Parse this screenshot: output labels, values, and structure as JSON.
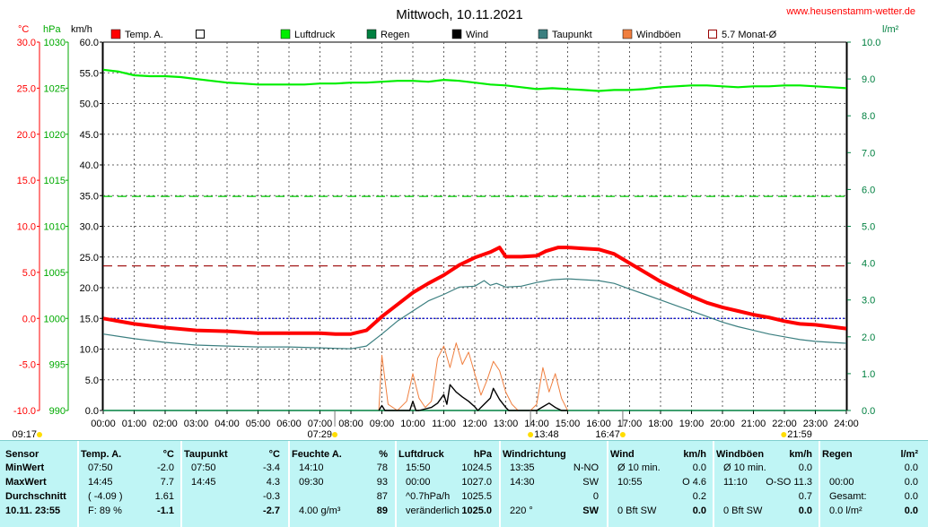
{
  "title": "Mittwoch, 10.11.2021",
  "site": "www.heusenstamm-wetter.de",
  "colors": {
    "temp": "#ff0000",
    "pressure": "#00ee00",
    "dew": "#3b7f80",
    "gust": "#f07f3f",
    "wind": "#000000",
    "rain": "#008040",
    "monthavg": "#990000",
    "axis_left": "#ff0000",
    "axis_hpa": "#00aa00",
    "axis_kmh": "#000000",
    "axis_rain": "#008040"
  },
  "axes": {
    "temp_unit": "°C",
    "hpa_unit": "hPa",
    "kmh_unit": "km/h",
    "rain_unit": "l/m²",
    "temp_ticks": [
      "30.0",
      "25.0",
      "20.0",
      "15.0",
      "10.0",
      "5.0",
      "0.0",
      "-5.0",
      "-10.0"
    ],
    "hpa_ticks": [
      "1030",
      "1025",
      "1020",
      "1015",
      "1010",
      "1005",
      "1000",
      "995",
      "990"
    ],
    "kmh_ticks": [
      "60.0",
      "55.0",
      "50.0",
      "45.0",
      "40.0",
      "35.0",
      "30.0",
      "25.0",
      "20.0",
      "15.0",
      "10.0",
      "5.0",
      "0.0"
    ],
    "rain_ticks": [
      "10.0",
      "9.0",
      "8.0",
      "7.0",
      "6.0",
      "5.0",
      "4.0",
      "3.0",
      "2.0",
      "1.0",
      "0.0"
    ],
    "x_ticks": [
      "00:00",
      "01:00",
      "02:00",
      "03:00",
      "04:00",
      "05:00",
      "06:00",
      "07:00",
      "08:00",
      "09:00",
      "10:00",
      "11:00",
      "12:00",
      "13:00",
      "14:00",
      "15:00",
      "16:00",
      "17:00",
      "18:00",
      "19:00",
      "20:00",
      "21:00",
      "22:00",
      "23:00",
      "24:00"
    ],
    "x_hours": [
      0,
      1,
      2,
      3,
      4,
      5,
      6,
      7,
      8,
      9,
      10,
      11,
      12,
      13,
      14,
      15,
      16,
      17,
      18,
      19,
      20,
      21,
      22,
      23,
      24
    ],
    "temp_range": [
      -10,
      30
    ],
    "hpa_range": [
      990,
      1030
    ],
    "kmh_range": [
      0,
      60
    ],
    "rain_range": [
      0,
      10
    ]
  },
  "legend": [
    {
      "label": "Temp. A.",
      "color": "#ff0000",
      "style": "fill"
    },
    {
      "label": "",
      "color": "#ffffff",
      "style": "box"
    },
    {
      "label": "Luftdruck",
      "color": "#00ee00",
      "style": "fill"
    },
    {
      "label": "Regen",
      "color": "#008040",
      "style": "fill"
    },
    {
      "label": "Wind",
      "color": "#000000",
      "style": "fill"
    },
    {
      "label": "Taupunkt",
      "color": "#3b7f80",
      "style": "fill"
    },
    {
      "label": "Windböen",
      "color": "#f07f3f",
      "style": "fill"
    },
    {
      "label": "5.7 Monat-Ø",
      "color": "#990000",
      "style": "box"
    }
  ],
  "sun_markers": [
    {
      "label": "09:17",
      "hour": 0
    },
    {
      "label": "07:29",
      "hour": 7.48
    },
    {
      "label": "13:48",
      "hour": 13.8
    },
    {
      "label": "16:47",
      "hour": 16.78
    },
    {
      "label": "21:59",
      "hour": 21.98
    }
  ],
  "chart_data": {
    "type": "line",
    "title": "Mittwoch, 10.11.2021",
    "x_unit": "hour",
    "series": [
      {
        "name": "Temp. A.",
        "axis": "temp",
        "color": "#ff0000",
        "x": [
          0,
          1,
          2,
          3,
          4,
          5,
          6,
          7,
          7.5,
          8,
          8.5,
          9,
          9.5,
          10,
          10.5,
          11,
          11.5,
          12,
          12.5,
          12.8,
          13,
          13.5,
          14,
          14.3,
          14.7,
          15,
          15.5,
          16,
          16.5,
          17,
          17.5,
          18,
          18.5,
          19,
          19.5,
          20,
          20.5,
          21,
          21.5,
          22,
          22.5,
          23,
          23.5,
          24
        ],
        "y": [
          0.0,
          -0.6,
          -1.0,
          -1.3,
          -1.4,
          -1.6,
          -1.6,
          -1.6,
          -1.7,
          -1.7,
          -1.3,
          0.2,
          1.5,
          2.8,
          3.8,
          4.7,
          5.8,
          6.6,
          7.2,
          7.7,
          6.7,
          6.7,
          6.8,
          7.3,
          7.7,
          7.7,
          7.6,
          7.5,
          7.0,
          6.0,
          5.0,
          4.0,
          3.2,
          2.4,
          1.7,
          1.2,
          0.8,
          0.4,
          0.1,
          -0.3,
          -0.6,
          -0.7,
          -0.9,
          -1.1
        ]
      },
      {
        "name": "Taupunkt",
        "axis": "temp",
        "color": "#3b7f80",
        "x": [
          0,
          1,
          2,
          3,
          4,
          5,
          6,
          7,
          8,
          8.5,
          9,
          9.5,
          10,
          10.5,
          11,
          11.5,
          12,
          12.3,
          12.5,
          12.7,
          13,
          13.5,
          14,
          14.5,
          15,
          15.5,
          16,
          16.5,
          17,
          17.5,
          18,
          18.5,
          19,
          19.5,
          20,
          20.5,
          21,
          21.5,
          22,
          22.5,
          23,
          23.5,
          24
        ],
        "y": [
          -1.7,
          -2.2,
          -2.6,
          -2.9,
          -3.0,
          -3.1,
          -3.1,
          -3.2,
          -3.3,
          -3.0,
          -1.7,
          -0.3,
          0.8,
          1.9,
          2.6,
          3.4,
          3.5,
          4.1,
          3.6,
          3.8,
          3.4,
          3.5,
          3.9,
          4.2,
          4.3,
          4.2,
          4.1,
          3.8,
          3.2,
          2.6,
          2.0,
          1.4,
          0.8,
          0.2,
          -0.4,
          -0.9,
          -1.3,
          -1.7,
          -2.0,
          -2.3,
          -2.5,
          -2.6,
          -2.7
        ]
      },
      {
        "name": "Luftdruck",
        "axis": "hpa",
        "color": "#00ee00",
        "x": [
          0,
          0.5,
          1,
          1.5,
          2,
          2.5,
          3,
          3.5,
          4,
          4.5,
          5,
          5.5,
          6,
          6.5,
          7,
          7.5,
          8,
          8.5,
          9,
          9.5,
          10,
          10.5,
          11,
          11.5,
          12,
          12.5,
          13,
          13.5,
          14,
          14.5,
          15,
          15.5,
          16,
          16.5,
          17,
          17.5,
          18,
          18.5,
          19,
          19.5,
          20,
          20.5,
          21,
          21.5,
          22,
          22.5,
          23,
          23.5,
          24
        ],
        "y": [
          1027.0,
          1026.8,
          1026.4,
          1026.3,
          1026.3,
          1026.2,
          1026.0,
          1025.8,
          1025.6,
          1025.5,
          1025.4,
          1025.4,
          1025.4,
          1025.4,
          1025.5,
          1025.5,
          1025.6,
          1025.6,
          1025.7,
          1025.8,
          1025.8,
          1025.7,
          1025.9,
          1025.8,
          1025.6,
          1025.4,
          1025.3,
          1025.1,
          1024.9,
          1025.0,
          1024.9,
          1024.8,
          1024.7,
          1024.8,
          1024.8,
          1024.9,
          1025.1,
          1025.2,
          1025.3,
          1025.3,
          1025.2,
          1025.1,
          1025.2,
          1025.2,
          1025.3,
          1025.3,
          1025.2,
          1025.1,
          1025.0
        ]
      },
      {
        "name": "Wind",
        "axis": "kmh",
        "color": "#000000",
        "x": [
          8.9,
          9.0,
          9.1,
          9.9,
          10.0,
          10.1,
          10.2,
          10.6,
          10.8,
          11.0,
          11.1,
          11.2,
          11.4,
          11.6,
          11.8,
          12.0,
          12.1,
          12.3,
          12.5,
          12.6,
          12.8,
          13.0,
          13.1,
          13.3,
          14.0,
          14.2,
          14.4,
          14.6,
          14.8,
          15.0
        ],
        "y": [
          0.0,
          0.8,
          0.0,
          0.0,
          1.5,
          0.0,
          0.0,
          0.5,
          1.2,
          2.6,
          1.0,
          4.2,
          3.0,
          2.2,
          1.5,
          0.6,
          0.0,
          1.0,
          2.0,
          3.6,
          1.8,
          0.5,
          0.0,
          0.0,
          0.0,
          0.6,
          1.2,
          0.5,
          0.0,
          0.0
        ]
      },
      {
        "name": "Windböen",
        "axis": "kmh",
        "color": "#f07f3f",
        "x": [
          8.9,
          9.0,
          9.2,
          9.5,
          9.8,
          10.0,
          10.2,
          10.4,
          10.6,
          10.8,
          11.0,
          11.2,
          11.4,
          11.6,
          11.8,
          12.0,
          12.2,
          12.4,
          12.6,
          12.8,
          13.0,
          13.2,
          13.4,
          13.6,
          13.8,
          14.0,
          14.2,
          14.4,
          14.6,
          14.8,
          15.0
        ],
        "y": [
          0.0,
          9.0,
          1.0,
          0.0,
          1.5,
          6.0,
          2.0,
          0.5,
          1.5,
          8.5,
          10.5,
          7.0,
          11.0,
          7.5,
          9.5,
          6.0,
          2.5,
          5.0,
          8.0,
          6.5,
          3.0,
          1.0,
          0.0,
          0.0,
          0.0,
          1.0,
          7.0,
          3.0,
          6.0,
          2.0,
          0.0
        ]
      },
      {
        "name": "Regen",
        "axis": "rain",
        "color": "#008040",
        "x": [
          0,
          24
        ],
        "y": [
          0,
          0
        ]
      }
    ],
    "reference_lines": [
      {
        "name": "5.7 Monat-Ø",
        "axis": "temp",
        "value": 5.7,
        "color": "#990000",
        "style": "dashed"
      },
      {
        "name": "",
        "axis": "hpa",
        "value": 1013.25,
        "color": "#00cc00",
        "style": "dashed"
      },
      {
        "name": "",
        "axis": "temp",
        "value": 0.0,
        "color": "#0000cc",
        "style": "dotted"
      }
    ]
  },
  "stats": {
    "sensor": {
      "header": "Sensor",
      "rows": [
        "MinWert",
        "MaxWert",
        "Durchschnitt",
        "10.11. 23:55"
      ]
    },
    "temp": {
      "header": "Temp. A.",
      "unit": "°C",
      "rows": [
        [
          "07:50",
          "-2.0"
        ],
        [
          "14:45",
          "7.7"
        ],
        [
          "( -4.09 )",
          "1.61"
        ],
        [
          "F: 89 %",
          "-1.1"
        ]
      ]
    },
    "dew": {
      "header": "Taupunkt",
      "unit": "°C",
      "rows": [
        [
          "07:50",
          "-3.4"
        ],
        [
          "14:45",
          "4.3"
        ],
        [
          "",
          "-0.3"
        ],
        [
          "",
          "-2.7"
        ]
      ]
    },
    "hum": {
      "header": "Feuchte A.",
      "unit": "%",
      "rows": [
        [
          "14:10",
          "78"
        ],
        [
          "09:30",
          "93"
        ],
        [
          "",
          "87"
        ],
        [
          "4.00 g/m³",
          "89"
        ]
      ]
    },
    "press": {
      "header": "Luftdruck",
      "unit": "hPa",
      "rows": [
        [
          "15:50",
          "1024.5"
        ],
        [
          "00:00",
          "1027.0"
        ],
        [
          "^0.7hPa/h",
          "1025.5"
        ],
        [
          "veränderlich",
          "1025.0"
        ]
      ]
    },
    "dir": {
      "header": "Windrichtung",
      "unit": "",
      "rows": [
        [
          "13:35",
          "N-NO"
        ],
        [
          "14:30",
          "SW"
        ],
        [
          "",
          "0"
        ],
        [
          "220 °",
          "SW"
        ]
      ]
    },
    "wind": {
      "header": "Wind",
      "unit": "km/h",
      "rows": [
        [
          "Ø 10 min.",
          "0.0"
        ],
        [
          "10:55",
          "O 4.6"
        ],
        [
          "",
          "0.2"
        ],
        [
          "0 Bft SW",
          "0.0"
        ]
      ]
    },
    "gust": {
      "header": "Windböen",
      "unit": "km/h",
      "rows": [
        [
          "Ø 10 min.",
          "0.0"
        ],
        [
          "11:10",
          "O-SO 11.3"
        ],
        [
          "",
          "0.7"
        ],
        [
          "0 Bft SW",
          "0.0"
        ]
      ]
    },
    "rain": {
      "header": "Regen",
      "unit": "l/m²",
      "rows": [
        [
          "",
          "0.0"
        ],
        [
          "00:00",
          "0.0"
        ],
        [
          "Gesamt:",
          "0.0"
        ],
        [
          "0.0 l/m²",
          "0.0"
        ]
      ]
    }
  }
}
